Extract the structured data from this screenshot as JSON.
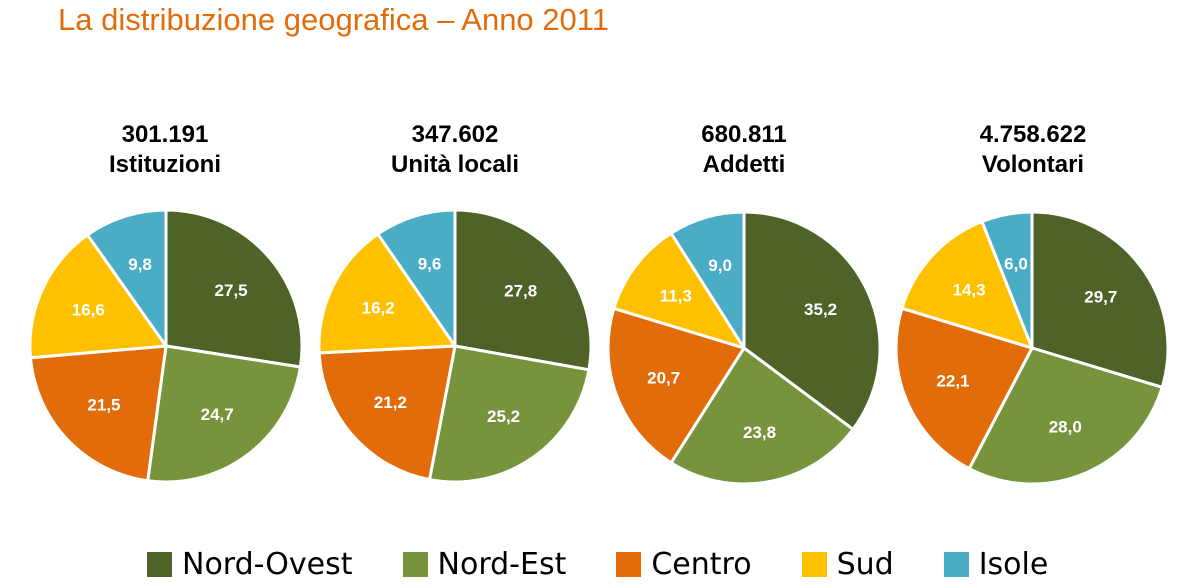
{
  "title": "La distribuzione geografica – Anno 2011",
  "colors": {
    "nord_ovest": "#4F6228",
    "nord_est": "#77933C",
    "centro": "#E36C0A",
    "sud": "#FFC000",
    "isole": "#4BACC6"
  },
  "legend": [
    {
      "label": "Nord-Ovest",
      "color": "#4F6228"
    },
    {
      "label": "Nord-Est",
      "color": "#77933C"
    },
    {
      "label": "Centro",
      "color": "#E36C0A"
    },
    {
      "label": "Sud",
      "color": "#FFC000"
    },
    {
      "label": "Isole",
      "color": "#4BACC6"
    }
  ],
  "chart_data": [
    {
      "type": "pie",
      "title": "301.191",
      "subtitle": "Istituzioni",
      "categories": [
        "Nord-Ovest",
        "Nord-Est",
        "Centro",
        "Sud",
        "Isole"
      ],
      "values": [
        27.5,
        24.7,
        21.5,
        16.6,
        9.8
      ],
      "labels": [
        "27,5",
        "24,7",
        "21,5",
        "16,6",
        "9,8"
      ]
    },
    {
      "type": "pie",
      "title": "347.602",
      "subtitle": "Unità locali",
      "categories": [
        "Nord-Ovest",
        "Nord-Est",
        "Centro",
        "Sud",
        "Isole"
      ],
      "values": [
        27.8,
        25.2,
        21.2,
        16.2,
        9.6
      ],
      "labels": [
        "27,8",
        "25,2",
        "21,2",
        "16,2",
        "9,6"
      ]
    },
    {
      "type": "pie",
      "title": "680.811",
      "subtitle": "Addetti",
      "categories": [
        "Nord-Ovest",
        "Nord-Est",
        "Centro",
        "Sud",
        "Isole"
      ],
      "values": [
        35.2,
        23.8,
        20.7,
        11.3,
        9.0
      ],
      "labels": [
        "35,2",
        "23,8",
        "20,7",
        "11,3",
        "9,0"
      ]
    },
    {
      "type": "pie",
      "title": "4.758.622",
      "subtitle": "Volontari",
      "categories": [
        "Nord-Ovest",
        "Nord-Est",
        "Centro",
        "Sud",
        "Isole"
      ],
      "values": [
        29.7,
        28.0,
        22.1,
        14.3,
        6.0
      ],
      "labels": [
        "29,7",
        "28,0",
        "22,1",
        "14,3",
        "6,0"
      ]
    }
  ]
}
